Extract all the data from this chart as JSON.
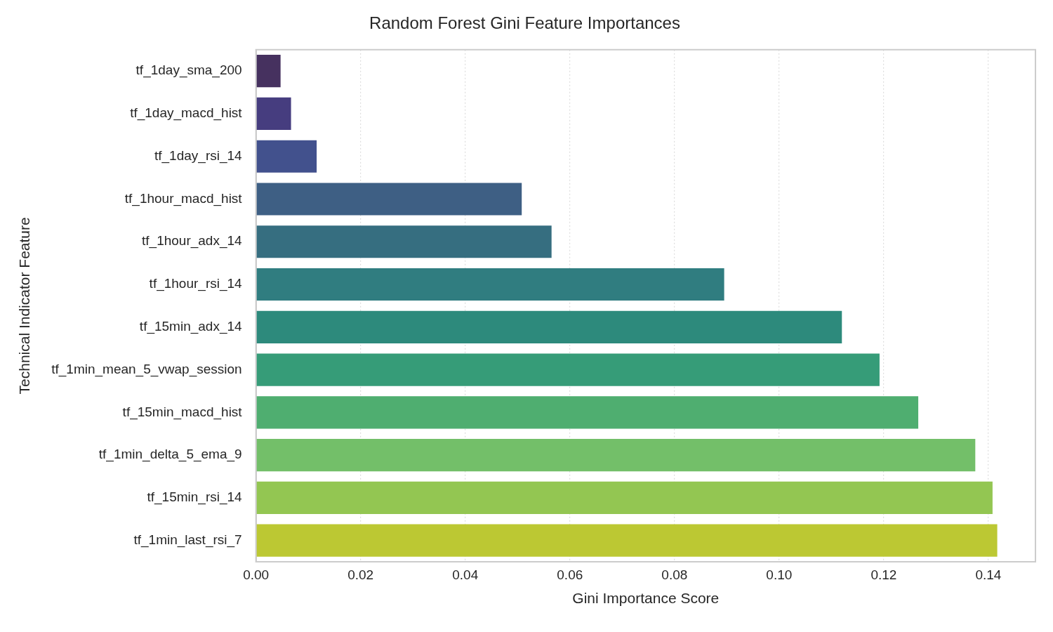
{
  "chart_data": {
    "type": "bar",
    "orientation": "horizontal",
    "title": "Random Forest Gini Feature Importances",
    "xlabel": "Gini Importance Score",
    "ylabel": "Technical Indicator Feature",
    "categories": [
      "tf_1day_sma_200",
      "tf_1day_macd_hist",
      "tf_1day_rsi_14",
      "tf_1hour_macd_hist",
      "tf_1hour_adx_14",
      "tf_1hour_rsi_14",
      "tf_15min_adx_14",
      "tf_1min_mean_5_vwap_session",
      "tf_15min_macd_hist",
      "tf_1min_delta_5_ema_9",
      "tf_15min_rsi_14",
      "tf_1min_last_rsi_7"
    ],
    "values": [
      0.0047,
      0.0067,
      0.0116,
      0.0508,
      0.0565,
      0.0895,
      0.112,
      0.1192,
      0.1266,
      0.1375,
      0.1408,
      0.1417
    ],
    "colors": [
      "#46315f",
      "#463d7f",
      "#42518d",
      "#3e5f84",
      "#366e80",
      "#307d80",
      "#2d8a7c",
      "#369c78",
      "#4fae70",
      "#73bf69",
      "#93c652",
      "#bcc833"
    ],
    "xlim": [
      0,
      0.149
    ],
    "xticks": [
      {
        "value": 0,
        "label": "0.00"
      },
      {
        "value": 0.02,
        "label": "0.02"
      },
      {
        "value": 0.04,
        "label": "0.04"
      },
      {
        "value": 0.06,
        "label": "0.06"
      },
      {
        "value": 0.08,
        "label": "0.08"
      },
      {
        "value": 0.1,
        "label": "0.10"
      },
      {
        "value": 0.12,
        "label": "0.12"
      },
      {
        "value": 0.14,
        "label": "0.14"
      }
    ],
    "grid": "x",
    "line_style": "dotted",
    "legend": false
  }
}
